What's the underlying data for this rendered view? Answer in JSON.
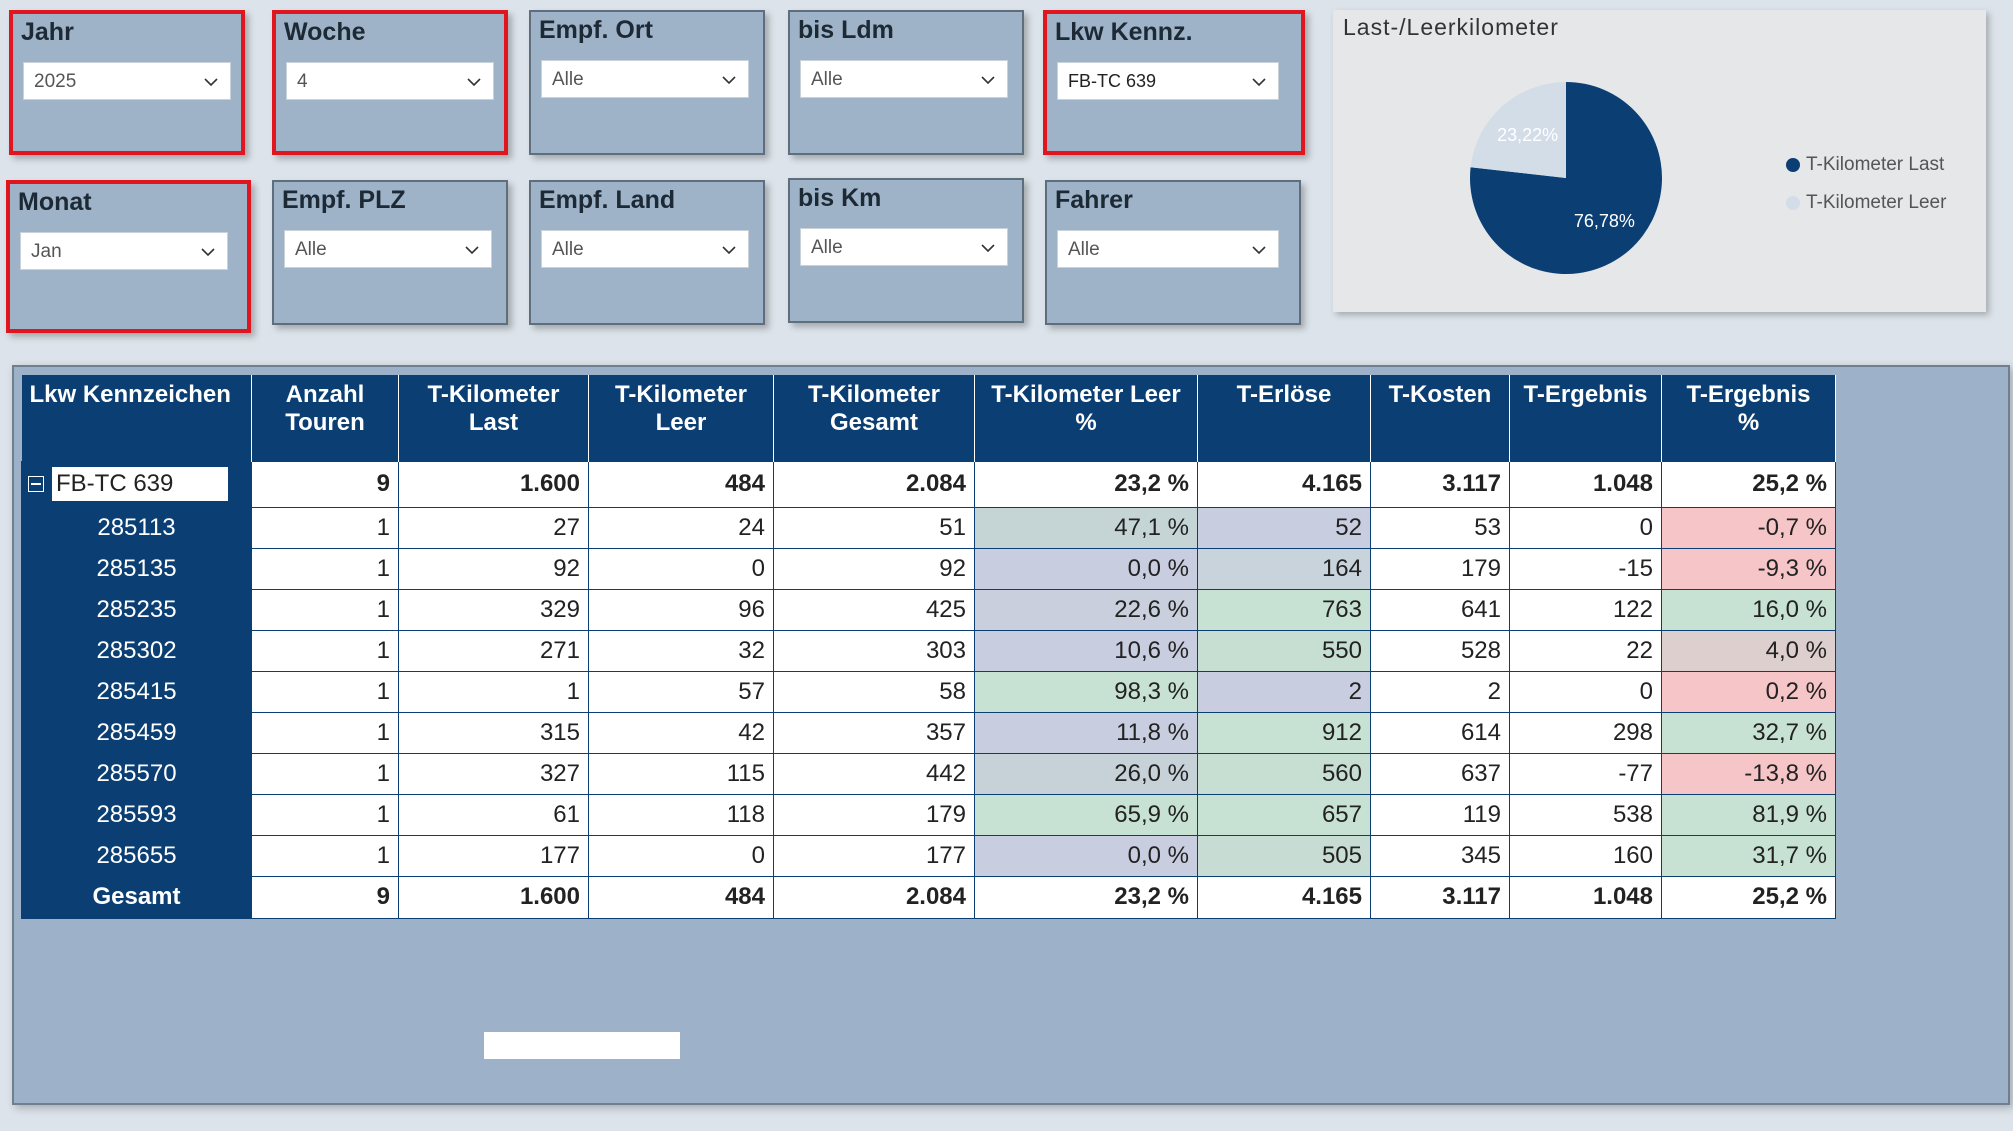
{
  "slicers": [
    {
      "id": "jahr",
      "title": "Jahr",
      "value": "2025"
    },
    {
      "id": "woche",
      "title": "Woche",
      "value": "4"
    },
    {
      "id": "empf-ort",
      "title": "Empf. Ort",
      "value": "Alle"
    },
    {
      "id": "bis-ldm",
      "title": "bis Ldm",
      "value": "Alle"
    },
    {
      "id": "lkw-kennz",
      "title": "Lkw Kennz.",
      "value": "FB-TC 639"
    },
    {
      "id": "monat",
      "title": "Monat",
      "value": "Jan"
    },
    {
      "id": "empf-plz",
      "title": "Empf. PLZ",
      "value": "Alle"
    },
    {
      "id": "empf-land",
      "title": "Empf. Land",
      "value": "Alle"
    },
    {
      "id": "bis-km",
      "title": "bis Km",
      "value": "Alle"
    },
    {
      "id": "fahrer",
      "title": "Fahrer",
      "value": "Alle"
    }
  ],
  "pie": {
    "title": "Last-/Leerkilometer",
    "slices": [
      {
        "name": "T-Kilometer Last",
        "value": 76.78,
        "label": "76,78%",
        "color": "#0b3f73"
      },
      {
        "name": "T-Kilometer Leer",
        "value": 23.22,
        "label": "23,22%",
        "color": "#d3dde8"
      }
    ]
  },
  "table": {
    "headers": [
      "Lkw Kennzeichen",
      "Anzahl\nTouren",
      "T-Kilometer\nLast",
      "T-Kilometer\nLeer",
      "T-Kilometer\nGesamt",
      "T-Kilometer Leer\n%",
      "T-Erlöse",
      "T-Kosten",
      "T-Ergebnis",
      "T-Ergebnis\n%"
    ],
    "group": {
      "label": "FB-TC 639",
      "cells": [
        "9",
        "1.600",
        "484",
        "2.084",
        "23,2 %",
        "4.165",
        "3.117",
        "1.048",
        "25,2 %"
      ]
    },
    "rows": [
      {
        "label": "285113",
        "cells": [
          "1",
          "27",
          "24",
          "51",
          "47,1 %",
          "52",
          "53",
          "0",
          "-0,7 %"
        ]
      },
      {
        "label": "285135",
        "cells": [
          "1",
          "92",
          "0",
          "92",
          "0,0 %",
          "164",
          "179",
          "-15",
          "-9,3 %"
        ]
      },
      {
        "label": "285235",
        "cells": [
          "1",
          "329",
          "96",
          "425",
          "22,6 %",
          "763",
          "641",
          "122",
          "16,0 %"
        ]
      },
      {
        "label": "285302",
        "cells": [
          "1",
          "271",
          "32",
          "303",
          "10,6 %",
          "550",
          "528",
          "22",
          "4,0 %"
        ]
      },
      {
        "label": "285415",
        "cells": [
          "1",
          "1",
          "57",
          "58",
          "98,3 %",
          "2",
          "2",
          "0",
          "0,2 %"
        ]
      },
      {
        "label": "285459",
        "cells": [
          "1",
          "315",
          "42",
          "357",
          "11,8 %",
          "912",
          "614",
          "298",
          "32,7 %"
        ]
      },
      {
        "label": "285570",
        "cells": [
          "1",
          "327",
          "115",
          "442",
          "26,0 %",
          "560",
          "637",
          "-77",
          "-13,8 %"
        ]
      },
      {
        "label": "285593",
        "cells": [
          "1",
          "61",
          "118",
          "179",
          "65,9 %",
          "657",
          "119",
          "538",
          "81,9 %"
        ]
      },
      {
        "label": "285655",
        "cells": [
          "1",
          "177",
          "0",
          "177",
          "0,0 %",
          "505",
          "345",
          "160",
          "31,7 %"
        ]
      }
    ],
    "total": {
      "label": "Gesamt",
      "cells": [
        "9",
        "1.600",
        "484",
        "2.084",
        "23,2 %",
        "4.165",
        "3.117",
        "1.048",
        "25,2 %"
      ]
    },
    "cell_colors": {
      "leer_pct": [
        "#c5d5d6",
        "#c9cde0",
        "#c9cfdc",
        "#c9cde0",
        "#c7e2d2",
        "#c9cde0",
        "#c6d1d8",
        "#c7e2d2",
        "#c9cde0"
      ],
      "erloese": [
        "#c9cde0",
        "#c9d3dc",
        "#c7e2d2",
        "#c7dfd2",
        "#c9cde0",
        "#c7e2d2",
        "#c7dfd2",
        "#c7e2d2",
        "#c7ddd3"
      ],
      "ergebnis_pct": [
        "#f6c5c8",
        "#f6c5c8",
        "#c7e2d2",
        "#dccfcd",
        "#f6c5c8",
        "#c7e2d2",
        "#f6c5c8",
        "#c7e2d2",
        "#c7e2d2"
      ]
    }
  }
}
